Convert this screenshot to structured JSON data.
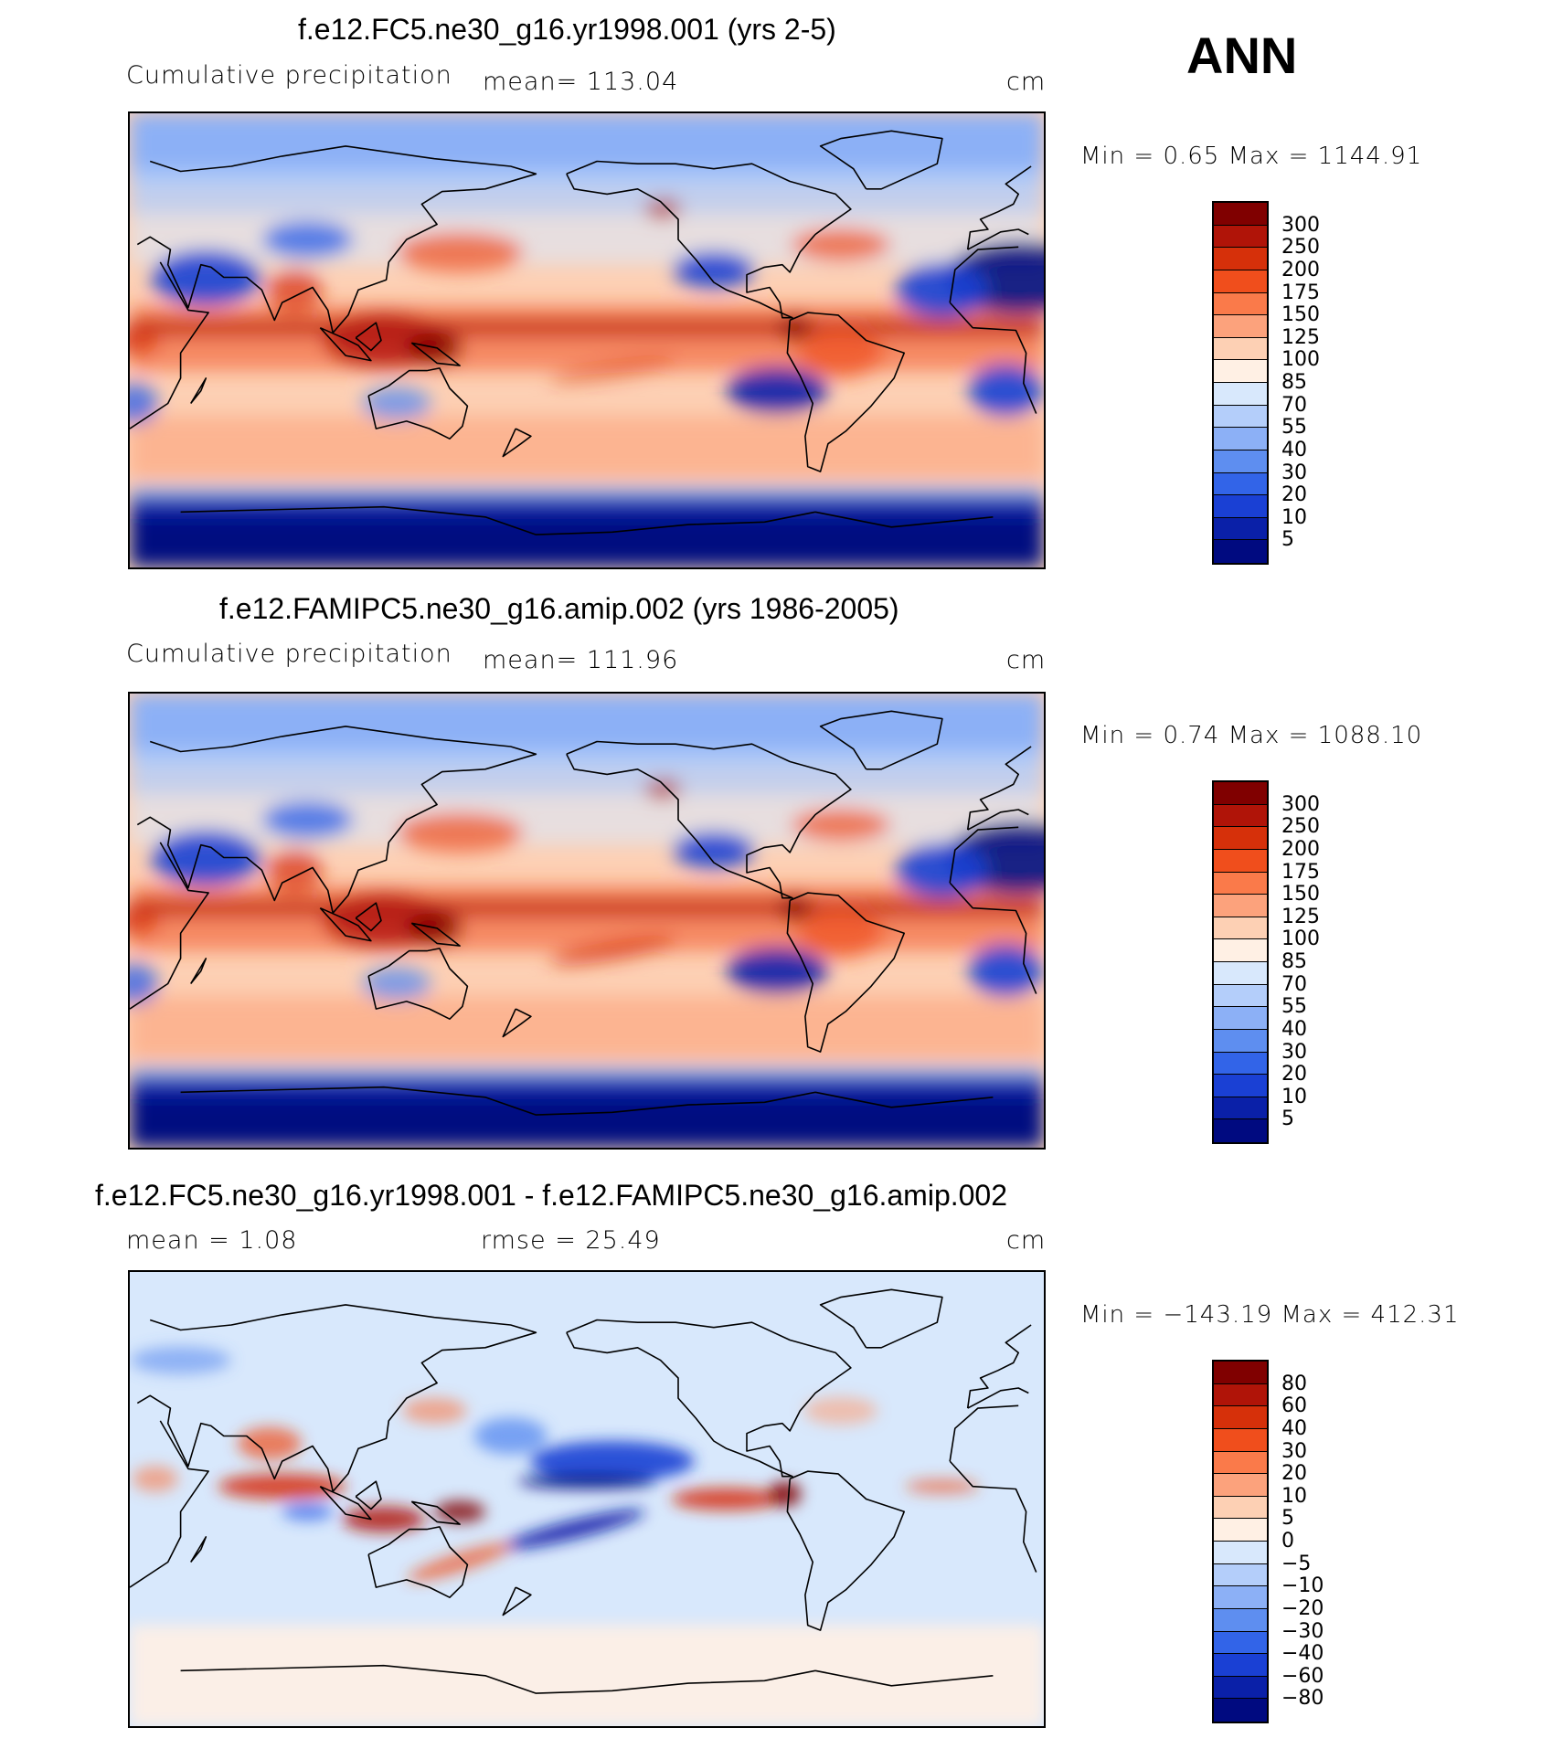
{
  "season": "ANN",
  "panels": [
    {
      "title": "f.e12.FC5.ne30_g16.yr1998.001 (yrs 2-5)",
      "left_label": "Cumulative precipitation",
      "mid_label": "mean= 113.04",
      "units": "cm",
      "minmax": "Min =    0.65  Max  =  1144.91",
      "colorbar": {
        "colors": [
          "#800000",
          "#b01408",
          "#d6300a",
          "#f04e1c",
          "#fa7a4a",
          "#fca27c",
          "#fdd0b4",
          "#fff0e4",
          "#d8e8fc",
          "#b4cefa",
          "#8cb0f6",
          "#5e8ef0",
          "#3264e8",
          "#1a40d4",
          "#0a20a8",
          "#000a80"
        ],
        "labels": [
          "300",
          "250",
          "200",
          "175",
          "150",
          "125",
          "100",
          "85",
          "70",
          "55",
          "40",
          "30",
          "20",
          "10",
          "5"
        ]
      }
    },
    {
      "title": "f.e12.FAMIPC5.ne30_g16.amip.002 (yrs 1986-2005)",
      "left_label": "Cumulative precipitation",
      "mid_label": "mean= 111.96",
      "units": "cm",
      "minmax": "Min =    0.74  Max  =  1088.10",
      "colorbar": {
        "colors": [
          "#800000",
          "#b01408",
          "#d6300a",
          "#f04e1c",
          "#fa7a4a",
          "#fca27c",
          "#fdd0b4",
          "#fff0e4",
          "#d8e8fc",
          "#b4cefa",
          "#8cb0f6",
          "#5e8ef0",
          "#3264e8",
          "#1a40d4",
          "#0a20a8",
          "#000a80"
        ],
        "labels": [
          "300",
          "250",
          "200",
          "175",
          "150",
          "125",
          "100",
          "85",
          "70",
          "55",
          "40",
          "30",
          "20",
          "10",
          "5"
        ]
      }
    },
    {
      "title": "f.e12.FC5.ne30_g16.yr1998.001 - f.e12.FAMIPC5.ne30_g16.amip.002",
      "left_label": "mean =     1.08",
      "mid_label": "rmse =    25.49",
      "units": "cm",
      "minmax": "Min = −143.19  Max  =  412.31",
      "colorbar": {
        "colors": [
          "#800000",
          "#b01408",
          "#d6300a",
          "#f04e1c",
          "#fa7a4a",
          "#fca27c",
          "#fdd0b4",
          "#fff0e4",
          "#d8e8fc",
          "#b4cefa",
          "#8cb0f6",
          "#5e8ef0",
          "#3264e8",
          "#1a40d4",
          "#0a20a8",
          "#000a80"
        ],
        "labels": [
          "80",
          "60",
          "40",
          "30",
          "20",
          "10",
          "5",
          "0",
          "−5",
          "−10",
          "−20",
          "−30",
          "−40",
          "−60",
          "−80"
        ]
      }
    }
  ]
}
